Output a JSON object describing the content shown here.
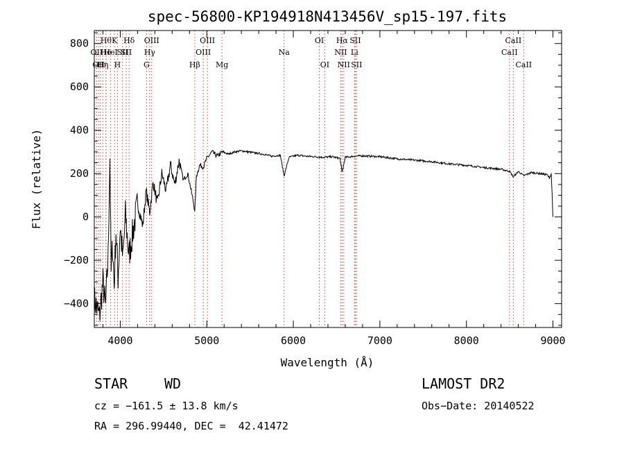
{
  "chart_data": {
    "type": "line",
    "title": "spec-56800-KP194918N413456V_sp15-197.fits",
    "xlabel": "Wavelength (Å)",
    "ylabel": "Flux (relative)",
    "xlim": [
      3700,
      9100
    ],
    "ylim": [
      -510,
      860
    ],
    "xticks": [
      4000,
      5000,
      6000,
      7000,
      8000,
      9000
    ],
    "yticks": [
      -400,
      -200,
      0,
      200,
      400,
      600,
      800
    ],
    "series": [
      {
        "x": [
          3700,
          3760,
          3800,
          3830,
          3860,
          3880,
          3895,
          3910,
          3930,
          3950,
          3975,
          4000,
          4030,
          4060,
          4100,
          4150,
          4200,
          4260,
          4300,
          4340,
          4380,
          4430,
          4480,
          4530,
          4580,
          4630,
          4680,
          4730,
          4780,
          4820,
          4850,
          4861,
          4880,
          4920,
          4960,
          5000,
          5060,
          5120,
          5180,
          5250,
          5320,
          5400,
          5480,
          5560,
          5650,
          5750,
          5850,
          5893,
          5950,
          6050,
          6150,
          6250,
          6350,
          6450,
          6540,
          6563,
          6600,
          6700,
          6800,
          6900,
          7000,
          7200,
          7400,
          7600,
          7800,
          8000,
          8200,
          8400,
          8500,
          8542,
          8600,
          8662,
          8750,
          8850,
          8930,
          8960,
          8980,
          8990,
          9000
        ],
        "values": [
          -380,
          -460,
          -300,
          -420,
          -180,
          280,
          -260,
          -120,
          -320,
          -60,
          -280,
          -40,
          -200,
          10,
          -180,
          -60,
          60,
          -40,
          120,
          20,
          160,
          60,
          200,
          120,
          240,
          150,
          260,
          170,
          200,
          120,
          60,
          20,
          190,
          240,
          230,
          270,
          300,
          280,
          300,
          290,
          300,
          305,
          300,
          295,
          290,
          280,
          285,
          190,
          275,
          285,
          280,
          278,
          275,
          278,
          270,
          205,
          275,
          280,
          282,
          280,
          278,
          268,
          262,
          255,
          245,
          238,
          228,
          220,
          210,
          185,
          210,
          190,
          205,
          200,
          195,
          180,
          200,
          110,
          0
        ]
      }
    ],
    "lines": [
      {
        "wl": 3727,
        "label": "OII",
        "row": 1
      },
      {
        "wl": 3750,
        "label": "OII",
        "row": 2
      },
      {
        "wl": 3770,
        "label": "H",
        "row": 2
      },
      {
        "wl": 3798,
        "label": "Hη",
        "row": 2
      },
      {
        "wl": 3835,
        "label": "Hθ",
        "row": 0
      },
      {
        "wl": 3835,
        "label": "He",
        "row": 1
      },
      {
        "wl": 3889,
        "label": "HeI",
        "row": 1
      },
      {
        "wl": 3934,
        "label": "K",
        "row": 0
      },
      {
        "wl": 3968,
        "label": "H",
        "row": 2
      },
      {
        "wl": 4026,
        "label": "SII",
        "row": 1
      },
      {
        "wl": 4069,
        "label": "SII",
        "row": 1
      },
      {
        "wl": 4102,
        "label": "Hδ",
        "row": 0
      },
      {
        "wl": 4304,
        "label": "G",
        "row": 2
      },
      {
        "wl": 4340,
        "label": "Hγ",
        "row": 1
      },
      {
        "wl": 4363,
        "label": "OIII",
        "row": 0
      },
      {
        "wl": 4861,
        "label": "Hβ",
        "row": 2
      },
      {
        "wl": 4959,
        "label": "OIII",
        "row": 1
      },
      {
        "wl": 5007,
        "label": "OIII",
        "row": 0
      },
      {
        "wl": 5175,
        "label": "Mg",
        "row": 2
      },
      {
        "wl": 5893,
        "label": "Na",
        "row": 1
      },
      {
        "wl": 6300,
        "label": "OI",
        "row": 0
      },
      {
        "wl": 6363,
        "label": "OI",
        "row": 2
      },
      {
        "wl": 6548,
        "label": "NII",
        "row": 1
      },
      {
        "wl": 6563,
        "label": "Hα",
        "row": 0
      },
      {
        "wl": 6583,
        "label": "NII",
        "row": 2
      },
      {
        "wl": 6707,
        "label": "Li",
        "row": 1
      },
      {
        "wl": 6716,
        "label": "SII",
        "row": 0
      },
      {
        "wl": 6731,
        "label": "SII",
        "row": 2
      },
      {
        "wl": 8498,
        "label": "CaII",
        "row": 1
      },
      {
        "wl": 8542,
        "label": "CaII",
        "row": 0
      },
      {
        "wl": 8662,
        "label": "CaII",
        "row": 2
      }
    ]
  },
  "info": {
    "class": "STAR",
    "subclass": "WD",
    "survey": "LAMOST DR2",
    "cz": "cz = −161.5 ± 13.8 km/s",
    "obs_date": "Obs−Date: 20140522",
    "coords": "RA = 296.99440, DEC =  42.41472"
  }
}
